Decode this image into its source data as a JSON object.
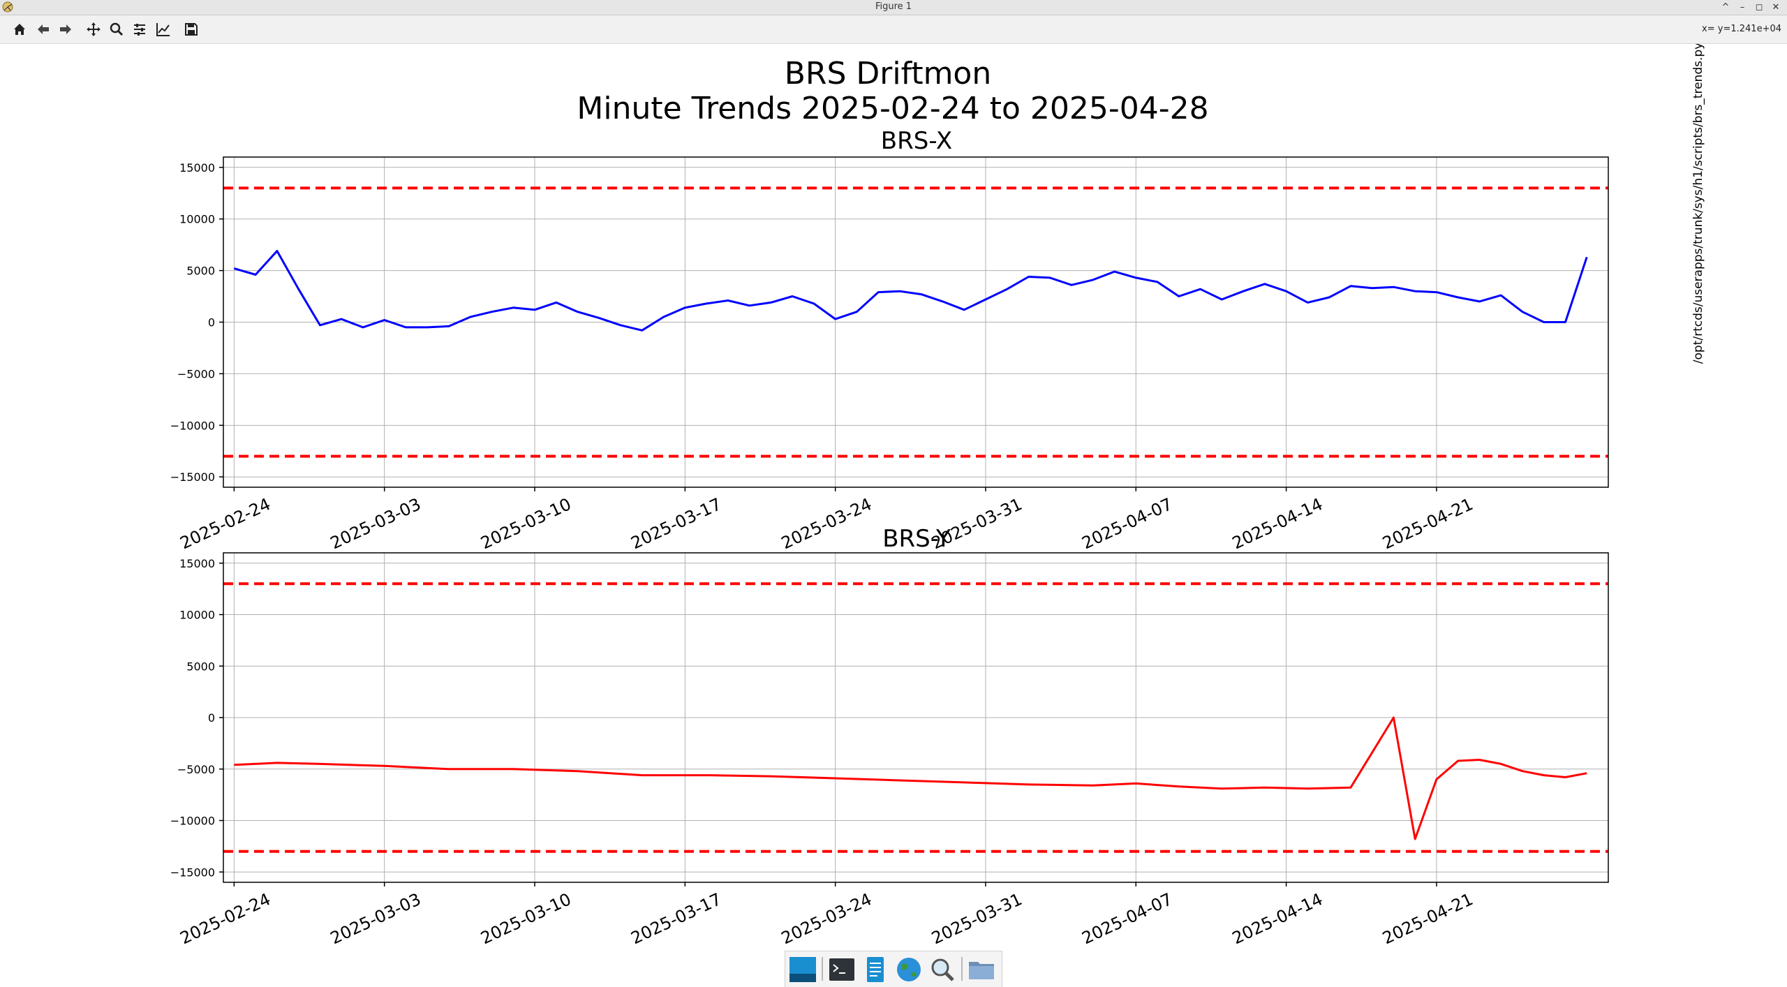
{
  "window": {
    "title": "Figure 1"
  },
  "toolbar": {
    "buttons": [
      {
        "name": "home-button",
        "icon": "home-icon"
      },
      {
        "name": "back-button",
        "icon": "arrow-left-icon"
      },
      {
        "name": "forward-button",
        "icon": "arrow-right-icon"
      },
      {
        "name": "pan-button",
        "icon": "move-icon"
      },
      {
        "name": "zoom-button",
        "icon": "magnifier-icon"
      },
      {
        "name": "subplots-button",
        "icon": "sliders-icon"
      },
      {
        "name": "axes-edit-button",
        "icon": "line-chart-icon"
      },
      {
        "name": "save-button",
        "icon": "floppy-disk-icon"
      }
    ],
    "coords": "x= y=1.241e+04"
  },
  "figure": {
    "title_line1": "BRS Driftmon",
    "title_line2": "Minute Trends 2025-02-24  to 2025-04-28",
    "side_label": "/opt/rtcds/userapps/trunk/sys/h1/scripts/brs_trends.py"
  },
  "taskbar": {
    "items": [
      {
        "name": "desktop-taskbar-item",
        "icon": "desktop-icon"
      },
      {
        "name": "terminal-taskbar-item",
        "icon": "terminal-icon"
      },
      {
        "name": "text-editor-taskbar-item",
        "icon": "text-editor-icon"
      },
      {
        "name": "web-browser-taskbar-item",
        "icon": "globe-icon"
      },
      {
        "name": "search-taskbar-item",
        "icon": "search-icon"
      },
      {
        "name": "file-manager-taskbar-item",
        "icon": "folder-icon"
      }
    ]
  },
  "colors": {
    "series_x": "#0000ff",
    "series_y": "#ff0000",
    "thresholds": "#ff0000",
    "grid": "#b0b0b0"
  },
  "chart_data": [
    {
      "type": "line",
      "title": "BRS-X",
      "xlabel": "",
      "ylabel": "",
      "x_ticks": [
        "2025-02-24",
        "2025-03-03",
        "2025-03-10",
        "2025-03-17",
        "2025-03-24",
        "2025-03-31",
        "2025-04-07",
        "2025-04-14",
        "2025-04-21"
      ],
      "y_ticks": [
        15000,
        10000,
        5000,
        0,
        -5000,
        -10000,
        -15000
      ],
      "xlim": [
        "2025-02-24",
        "2025-04-28"
      ],
      "ylim": [
        -16000,
        16000
      ],
      "grid": true,
      "thresholds": [
        13000,
        -13000
      ],
      "series": [
        {
          "color": "#0000ff",
          "points": [
            [
              "2025-02-24",
              5200
            ],
            [
              "2025-02-25",
              4600
            ],
            [
              "2025-02-26",
              6900
            ],
            [
              "2025-02-27",
              3200
            ],
            [
              "2025-02-28",
              -300
            ],
            [
              "2025-03-01",
              300
            ],
            [
              "2025-03-02",
              -500
            ],
            [
              "2025-03-03",
              200
            ],
            [
              "2025-03-04",
              -500
            ],
            [
              "2025-03-05",
              -500
            ],
            [
              "2025-03-06",
              -400
            ],
            [
              "2025-03-07",
              500
            ],
            [
              "2025-03-08",
              1000
            ],
            [
              "2025-03-09",
              1400
            ],
            [
              "2025-03-10",
              1200
            ],
            [
              "2025-03-11",
              1900
            ],
            [
              "2025-03-12",
              1000
            ],
            [
              "2025-03-13",
              400
            ],
            [
              "2025-03-14",
              -300
            ],
            [
              "2025-03-15",
              -800
            ],
            [
              "2025-03-16",
              500
            ],
            [
              "2025-03-17",
              1400
            ],
            [
              "2025-03-18",
              1800
            ],
            [
              "2025-03-19",
              2100
            ],
            [
              "2025-03-20",
              1600
            ],
            [
              "2025-03-21",
              1900
            ],
            [
              "2025-03-22",
              2500
            ],
            [
              "2025-03-23",
              1800
            ],
            [
              "2025-03-24",
              300
            ],
            [
              "2025-03-25",
              1000
            ],
            [
              "2025-03-26",
              2900
            ],
            [
              "2025-03-27",
              3000
            ],
            [
              "2025-03-28",
              2700
            ],
            [
              "2025-03-29",
              2000
            ],
            [
              "2025-03-30",
              1200
            ],
            [
              "2025-03-31",
              2200
            ],
            [
              "2025-04-01",
              3200
            ],
            [
              "2025-04-02",
              4400
            ],
            [
              "2025-04-03",
              4300
            ],
            [
              "2025-04-04",
              3600
            ],
            [
              "2025-04-05",
              4100
            ],
            [
              "2025-04-06",
              4900
            ],
            [
              "2025-04-07",
              4300
            ],
            [
              "2025-04-08",
              3900
            ],
            [
              "2025-04-09",
              2500
            ],
            [
              "2025-04-10",
              3200
            ],
            [
              "2025-04-11",
              2200
            ],
            [
              "2025-04-12",
              3000
            ],
            [
              "2025-04-13",
              3700
            ],
            [
              "2025-04-14",
              3000
            ],
            [
              "2025-04-15",
              1900
            ],
            [
              "2025-04-16",
              2400
            ],
            [
              "2025-04-17",
              3500
            ],
            [
              "2025-04-18",
              3300
            ],
            [
              "2025-04-19",
              3400
            ],
            [
              "2025-04-20",
              3000
            ],
            [
              "2025-04-21",
              2900
            ],
            [
              "2025-04-22",
              2400
            ],
            [
              "2025-04-23",
              2000
            ],
            [
              "2025-04-24",
              2600
            ],
            [
              "2025-04-25",
              1000
            ],
            [
              "2025-04-26",
              0
            ],
            [
              "2025-04-27",
              0
            ],
            [
              "2025-04-28",
              6300
            ]
          ]
        }
      ]
    },
    {
      "type": "line",
      "title": "BRS-Y",
      "xlabel": "",
      "ylabel": "",
      "x_ticks": [
        "2025-02-24",
        "2025-03-03",
        "2025-03-10",
        "2025-03-17",
        "2025-03-24",
        "2025-03-31",
        "2025-04-07",
        "2025-04-14",
        "2025-04-21"
      ],
      "y_ticks": [
        15000,
        10000,
        5000,
        0,
        -5000,
        -10000,
        -15000
      ],
      "xlim": [
        "2025-02-24",
        "2025-04-28"
      ],
      "ylim": [
        -16000,
        16000
      ],
      "grid": true,
      "thresholds": [
        13000,
        -13000
      ],
      "series": [
        {
          "color": "#ff0000",
          "points": [
            [
              "2025-02-24",
              -4600
            ],
            [
              "2025-02-26",
              -4400
            ],
            [
              "2025-02-28",
              -4500
            ],
            [
              "2025-03-03",
              -4700
            ],
            [
              "2025-03-06",
              -5000
            ],
            [
              "2025-03-09",
              -5000
            ],
            [
              "2025-03-12",
              -5200
            ],
            [
              "2025-03-15",
              -5600
            ],
            [
              "2025-03-18",
              -5600
            ],
            [
              "2025-03-21",
              -5700
            ],
            [
              "2025-03-24",
              -5900
            ],
            [
              "2025-03-27",
              -6100
            ],
            [
              "2025-03-30",
              -6300
            ],
            [
              "2025-04-02",
              -6500
            ],
            [
              "2025-04-05",
              -6600
            ],
            [
              "2025-04-07",
              -6400
            ],
            [
              "2025-04-09",
              -6700
            ],
            [
              "2025-04-11",
              -6900
            ],
            [
              "2025-04-13",
              -6800
            ],
            [
              "2025-04-15",
              -6900
            ],
            [
              "2025-04-17",
              -6800
            ],
            [
              "2025-04-19",
              0
            ],
            [
              "2025-04-20",
              -11800
            ],
            [
              "2025-04-21",
              -6000
            ],
            [
              "2025-04-22",
              -4200
            ],
            [
              "2025-04-23",
              -4100
            ],
            [
              "2025-04-24",
              -4500
            ],
            [
              "2025-04-25",
              -5200
            ],
            [
              "2025-04-26",
              -5600
            ],
            [
              "2025-04-27",
              -5800
            ],
            [
              "2025-04-28",
              -5400
            ]
          ]
        }
      ]
    }
  ]
}
